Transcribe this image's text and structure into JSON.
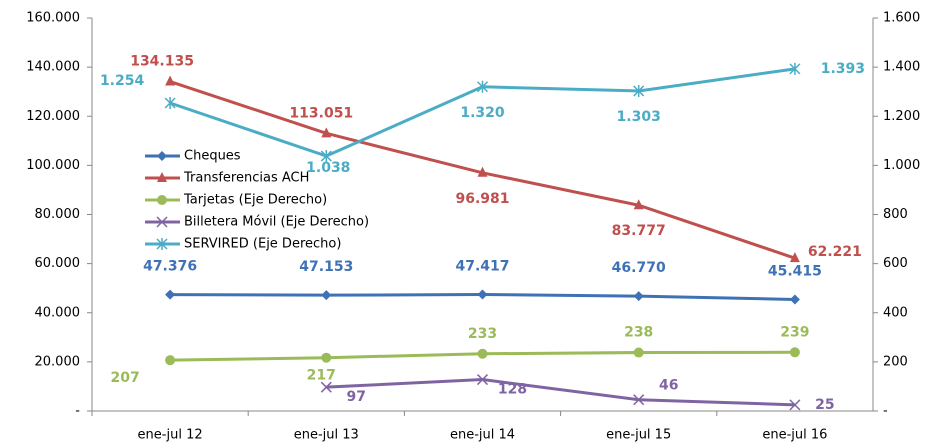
{
  "chart_data": {
    "type": "line",
    "categories": [
      "ene-jul 12",
      "ene-jul 13",
      "ene-jul 14",
      "ene-jul 15",
      "ene-jul 16"
    ],
    "ylim": [
      0,
      160000
    ],
    "yticks": [
      {
        "value": 0,
        "label": "-"
      },
      {
        "value": 20000,
        "label": "20.000"
      },
      {
        "value": 40000,
        "label": "40.000"
      },
      {
        "value": 60000,
        "label": "60.000"
      },
      {
        "value": 80000,
        "label": "80.000"
      },
      {
        "value": 100000,
        "label": "100.000"
      },
      {
        "value": 120000,
        "label": "120.000"
      },
      {
        "value": 140000,
        "label": "140.000"
      },
      {
        "value": 160000,
        "label": "160.000"
      }
    ],
    "y2lim": [
      0,
      1600
    ],
    "y2ticks": [
      {
        "value": 0,
        "label": "-"
      },
      200,
      400,
      600,
      800,
      {
        "value": 1000,
        "label": "1.000"
      },
      {
        "value": 1200,
        "label": "1.200"
      },
      {
        "value": 1400,
        "label": "1.400"
      },
      {
        "value": 1600,
        "label": "1.600"
      }
    ],
    "series": [
      {
        "name": "Cheques",
        "color": "#3f72b5",
        "values": [
          47376,
          47153,
          47417,
          46770,
          45415
        ],
        "value_labels": [
          "47.376",
          "47.153",
          "47.417",
          "46.770",
          "45.415"
        ]
      },
      {
        "name": "Transferencias ACH",
        "color": "#c0504d",
        "values": [
          134135,
          113051,
          96981,
          83777,
          62221
        ],
        "value_labels": [
          "134.135",
          "113.051",
          "96.981",
          "83.777",
          "62.221"
        ]
      },
      {
        "name": "Tarjetas (Eje Derecho)",
        "color": "#9bbb59",
        "axis": "y2",
        "values": [
          207,
          217,
          233,
          238,
          239
        ]
      },
      {
        "name": "Billetera Móvil (Eje Derecho)",
        "color": "#8064a2",
        "axis": "y2",
        "values": [
          null,
          97,
          128,
          46,
          25
        ]
      },
      {
        "name": "SERVIRED (Eje Derecho)",
        "color": "#4bacc6",
        "axis": "y2",
        "values": [
          1254,
          1038,
          1320,
          1303,
          1393
        ],
        "value_labels": [
          "1.254",
          "1.038",
          "1.320",
          "1.303",
          "1.393"
        ]
      }
    ]
  }
}
